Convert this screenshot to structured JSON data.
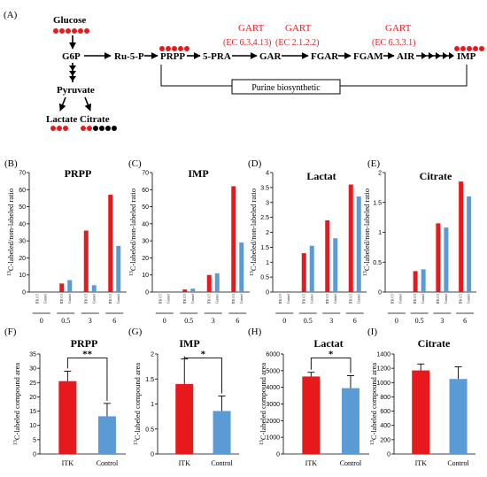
{
  "pathway": {
    "panel_label": "(A)",
    "glucose": "Glucose",
    "g6p": "G6P",
    "ru5p": "Ru-5-P",
    "prpp": "PRPP",
    "pra5": "5-PRA",
    "gar": "GAR",
    "fgar": "FGAR",
    "fgam": "FGAM",
    "air": "AIR",
    "imp": "IMP",
    "pyruvate": "Pyruvate",
    "lactate": "Lactate",
    "citrate": "Citrate",
    "gart1": "GART",
    "gart2": "GART",
    "gart3": "GART",
    "ec1": "(EC 6.3.4.13)",
    "ec2": "(EC 2.1.2.2)",
    "ec3": "(EC 6.3.3.1)",
    "bracket_label": "Purine biosynthetic",
    "colors": {
      "red": "#e8191d",
      "black": "#000000"
    }
  },
  "chart_data": [
    {
      "panel": "(B)",
      "type": "bar",
      "title": "PRPP",
      "ylabel": "13C-labeled/non-labeled ratio",
      "ylim": [
        0,
        70
      ],
      "yticks": [
        "0",
        "10",
        "20",
        "30",
        "40",
        "50",
        "60",
        "70"
      ],
      "groups": [
        "0",
        "0.5",
        "3",
        "6"
      ],
      "bar_labels": [
        "ITK 0.5",
        "Control"
      ],
      "series": [
        {
          "name": "ITK",
          "values": [
            0,
            5,
            36,
            57
          ]
        },
        {
          "name": "Control",
          "values": [
            0,
            7,
            4,
            27
          ]
        }
      ]
    },
    {
      "panel": "(C)",
      "type": "bar",
      "title": "IMP",
      "ylabel": "13C-labeled/non-labeled ratio",
      "ylim": [
        0,
        70
      ],
      "yticks": [
        "0",
        "10",
        "20",
        "30",
        "40",
        "50",
        "60",
        "70"
      ],
      "groups": [
        "0",
        "0.5",
        "3",
        "6"
      ],
      "bar_labels": [
        "ITK 0.5",
        "Control"
      ],
      "series": [
        {
          "name": "ITK",
          "values": [
            0,
            1.5,
            10,
            62
          ]
        },
        {
          "name": "Control",
          "values": [
            0,
            2,
            11,
            29
          ]
        }
      ]
    },
    {
      "panel": "(D)",
      "type": "bar",
      "title": "Lactat",
      "ylabel": "13C-labeled/non-labeled ratio",
      "ylim": [
        0,
        4
      ],
      "yticks": [
        "0",
        "0.5",
        "1",
        "1.5",
        "2",
        "2.5",
        "3",
        "3.5",
        "4"
      ],
      "groups": [
        "0",
        "0.5",
        "3",
        "6"
      ],
      "bar_labels": [
        "ITK 0.5",
        "Control"
      ],
      "series": [
        {
          "name": "ITK",
          "values": [
            0,
            1.3,
            2.4,
            3.6
          ]
        },
        {
          "name": "Control",
          "values": [
            0,
            1.55,
            1.8,
            3.2
          ]
        }
      ]
    },
    {
      "panel": "(E)",
      "type": "bar",
      "title": "Citrate",
      "ylabel": "13C-labeled/non-labeled ratio",
      "ylim": [
        0,
        2
      ],
      "yticks": [
        "0",
        "0.5",
        "1",
        "1.5",
        "2"
      ],
      "groups": [
        "0",
        "0.5",
        "3",
        "6"
      ],
      "bar_labels": [
        "ITK 0.5",
        "Control"
      ],
      "series": [
        {
          "name": "ITK",
          "values": [
            0,
            0.35,
            1.15,
            1.85
          ]
        },
        {
          "name": "Control",
          "values": [
            0,
            0.38,
            1.08,
            1.6
          ]
        }
      ]
    },
    {
      "panel": "(F)",
      "type": "bar",
      "title": "PRPP",
      "ylabel": "13C-labeled compound area",
      "ylim": [
        0,
        35
      ],
      "yticks": [
        "0",
        "5",
        "10",
        "15",
        "20",
        "25",
        "30",
        "35"
      ],
      "categories": [
        "ITK",
        "Control"
      ],
      "values": [
        25.5,
        13.2
      ],
      "errors": [
        3.5,
        4.5
      ],
      "significance": "**"
    },
    {
      "panel": "(G)",
      "type": "bar",
      "title": "IMP",
      "ylabel": "13C-labeled compound area",
      "ylim": [
        0,
        2
      ],
      "yticks": [
        "0",
        "0.5",
        "1",
        "1.5",
        "2"
      ],
      "categories": [
        "ITK",
        "Control"
      ],
      "values": [
        1.4,
        0.86
      ],
      "errors": [
        0.5,
        0.3
      ],
      "significance": "*"
    },
    {
      "panel": "(H)",
      "type": "bar",
      "title": "Lactat",
      "ylabel": "13C-labeled compound area",
      "ylim": [
        0,
        6000
      ],
      "yticks": [
        "0",
        "1000",
        "2000",
        "3000",
        "4000",
        "5000",
        "6000"
      ],
      "categories": [
        "ITK",
        "Control"
      ],
      "values": [
        4650,
        3950
      ],
      "errors": [
        250,
        750
      ],
      "significance": "*"
    },
    {
      "panel": "(I)",
      "type": "bar",
      "title": "Citrate",
      "ylabel": "13C-labeled compound area",
      "ylim": [
        0,
        1400
      ],
      "yticks": [
        "0",
        "200",
        "400",
        "600",
        "800",
        "1000",
        "1200",
        "1400"
      ],
      "categories": [
        "ITK",
        "Control"
      ],
      "values": [
        1170,
        1050
      ],
      "errors": [
        90,
        170
      ],
      "significance": ""
    }
  ]
}
